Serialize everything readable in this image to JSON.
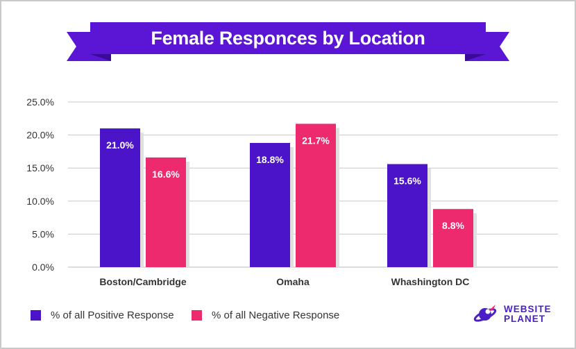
{
  "chart_data": {
    "type": "bar",
    "title": "Female Responces by Location",
    "categories": [
      "Boston/Cambridge",
      "Omaha",
      "Whashington DC"
    ],
    "series": [
      {
        "name": "% of all Positive Response",
        "values": [
          21.0,
          18.8,
          15.6
        ],
        "labels": [
          "21.0%",
          "18.8%",
          "15.6%"
        ]
      },
      {
        "name": "% of all Negative Response",
        "values": [
          16.6,
          21.7,
          8.8
        ],
        "labels": [
          "16.6%",
          "21.7%",
          "8.8%"
        ]
      }
    ],
    "ylim": [
      0,
      25
    ],
    "yticks": [
      0,
      5,
      10,
      15,
      20,
      25
    ],
    "ytick_labels": [
      "0.0%",
      "5.0%",
      "10.0%",
      "15.0%",
      "20.0%",
      "25.0%"
    ],
    "grid": true,
    "legend_position": "bottom-left"
  },
  "colors": {
    "positive": "#4b14c8",
    "negative": "#ee2a6f",
    "banner": "#5a16d4",
    "banner_dark": "#3a0b98",
    "bar_shadow": "#e0e0e0",
    "grid": "#c8c8c8",
    "axis_text": "#333333"
  },
  "logo": {
    "line1": "WEBSITE",
    "line2": "PLANET",
    "icon": "planet-rocket-icon"
  }
}
